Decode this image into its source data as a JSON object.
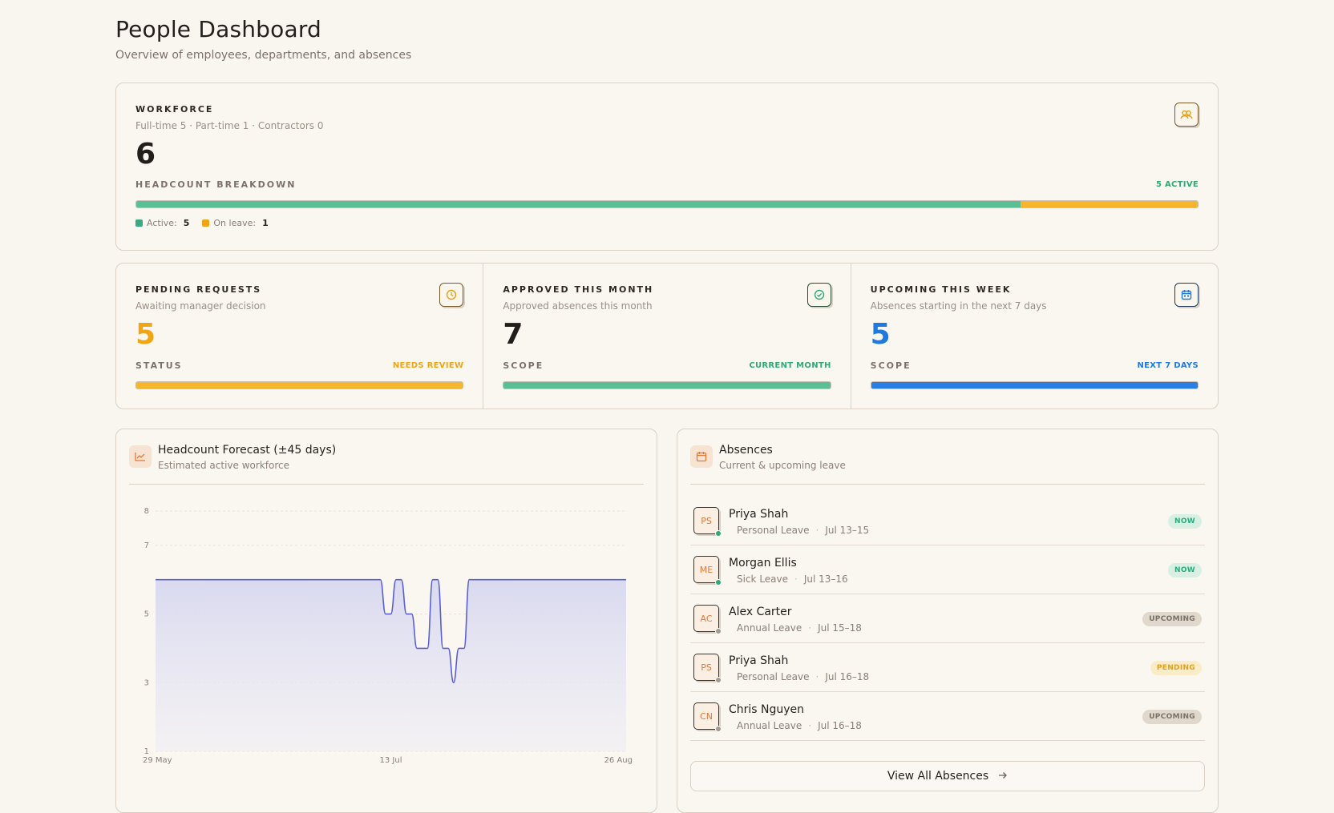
{
  "header": {
    "title": "People Dashboard",
    "subtitle": "Overview of employees, departments, and absences"
  },
  "workforce": {
    "eyebrow": "WORKFORCE",
    "summary": "Full-time 5 · Part-time 1 · Contractors 0",
    "count": "6",
    "breakdown_label": "HEADCOUNT BREAKDOWN",
    "active_tag": "5 ACTIVE",
    "active_fraction": 0.833,
    "legend": [
      {
        "label": "Active:",
        "value": "5",
        "color": "#3aa981"
      },
      {
        "label": "On leave:",
        "value": "1",
        "color": "#f0a515"
      }
    ],
    "icon": "people-icon"
  },
  "stats": [
    {
      "eyebrow": "PENDING REQUESTS",
      "subtitle": "Awaiting manager decision",
      "value": "5",
      "value_color": "#f0a515",
      "meta_label": "STATUS",
      "meta_tag": "NEEDS REVIEW",
      "accent": "#f0a515",
      "fill": "#f5b52c",
      "icon": "clock-icon"
    },
    {
      "eyebrow": "APPROVED THIS MONTH",
      "subtitle": "Approved absences this month",
      "value": "7",
      "value_color": "#231e1b",
      "meta_label": "SCOPE",
      "meta_tag": "CURRENT MONTH",
      "accent": "#2ea97a",
      "fill": "#5bbf96",
      "icon": "check-circle-icon"
    },
    {
      "eyebrow": "UPCOMING THIS WEEK",
      "subtitle": "Absences starting in the next 7 days",
      "value": "5",
      "value_color": "#1f7ae0",
      "meta_label": "SCOPE",
      "meta_tag": "NEXT 7 DAYS",
      "accent": "#1f7ae0",
      "fill": "#2a7fe0",
      "icon": "calendar-icon"
    }
  ],
  "forecast": {
    "title": "Headcount Forecast (±45 days)",
    "subtitle": "Estimated active workforce",
    "icon": "trend-chart-icon"
  },
  "chart_data": {
    "type": "area",
    "title": "Headcount Forecast (±45 days)",
    "ylim": [
      1,
      8
    ],
    "yticks": [
      "8",
      "7",
      "5",
      "3",
      "1"
    ],
    "xticks": [
      "29 May",
      "13 Jul",
      "26 Aug"
    ],
    "series": [
      {
        "values": [
          6,
          6,
          6,
          6,
          6,
          6,
          6,
          6,
          6,
          6,
          6,
          6,
          6,
          6,
          6,
          6,
          6,
          6,
          6,
          6,
          6,
          6,
          6,
          6,
          6,
          6,
          6,
          6,
          6,
          6,
          6,
          6,
          6,
          6,
          6,
          6,
          6,
          6,
          6,
          6,
          6,
          6,
          6,
          6,
          5,
          5,
          6,
          6,
          5,
          5,
          4,
          4,
          4,
          6,
          6,
          4,
          4,
          3,
          4,
          4,
          6,
          6,
          6,
          6,
          6,
          6,
          6,
          6,
          6,
          6,
          6,
          6,
          6,
          6,
          6,
          6,
          6,
          6,
          6,
          6,
          6,
          6,
          6,
          6,
          6,
          6,
          6,
          6,
          6,
          6,
          6
        ]
      }
    ],
    "line_color": "#5a5fd6",
    "fill_color": "#dcdcf0",
    "grid": true
  },
  "absences": {
    "title": "Absences",
    "subtitle": "Current & upcoming leave",
    "icon": "calendar-icon",
    "items": [
      {
        "initials": "PS",
        "name": "Priya Shah",
        "type": "Personal Leave",
        "dates": "Jul 13–15",
        "status": "NOW",
        "presence": "#2ea97a",
        "pill_bg": "#d8f0e3",
        "pill_fg": "#2ea97a"
      },
      {
        "initials": "ME",
        "name": "Morgan Ellis",
        "type": "Sick Leave",
        "dates": "Jul 13–16",
        "status": "NOW",
        "presence": "#2ea97a",
        "pill_bg": "#d8f0e3",
        "pill_fg": "#2ea97a"
      },
      {
        "initials": "AC",
        "name": "Alex Carter",
        "type": "Annual Leave",
        "dates": "Jul 15–18",
        "status": "UPCOMING",
        "presence": "#a39a92",
        "pill_bg": "#e0d8cc",
        "pill_fg": "#7a7068"
      },
      {
        "initials": "PS",
        "name": "Priya Shah",
        "type": "Personal Leave",
        "dates": "Jul 16–18",
        "status": "PENDING",
        "presence": "#a39a92",
        "pill_bg": "#fbecc8",
        "pill_fg": "#e4a01c"
      },
      {
        "initials": "CN",
        "name": "Chris Nguyen",
        "type": "Annual Leave",
        "dates": "Jul 16–18",
        "status": "UPCOMING",
        "presence": "#a39a92",
        "pill_bg": "#e0d8cc",
        "pill_fg": "#7a7068"
      }
    ],
    "view_all_label": "View All Absences",
    "view_all_icon": "arrow-right-icon"
  }
}
